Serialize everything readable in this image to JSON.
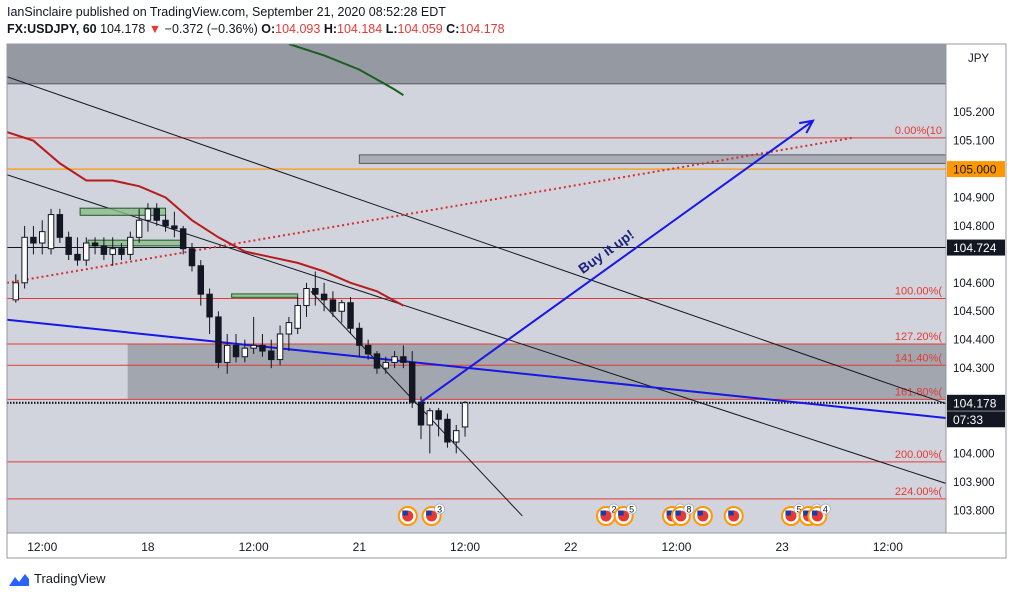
{
  "header": {
    "publish_line": "IanSinclaire published on TradingView.com, September 21, 2020 08:52:28 EDT",
    "symbol": "FX:USDJPY, 60",
    "last": "104.178",
    "arrow": "▼",
    "change": "−0.372 (−0.36%)",
    "o_label": "O:",
    "o_value": "104.093",
    "h_label": "H:",
    "h_value": "104.184",
    "l_label": "L:",
    "l_value": "104.059",
    "c_label": "C:",
    "c_value": "104.178"
  },
  "footer": {
    "brand": "TradingView"
  },
  "colors": {
    "background": "#d1d4dc",
    "bull": "#ffffff",
    "bear": "#131722",
    "red_ma": "#b71c1c",
    "green_ma": "#1b5e20",
    "blue": "#1717e6",
    "fib": "#e53935",
    "orange": "#ff9800"
  },
  "chart_data": {
    "type": "candlestick",
    "currency": "JPY",
    "ylim": [
      103.72,
      105.44
    ],
    "y_ticks": [
      "105.200",
      "105.100",
      "104.900",
      "104.800",
      "104.600",
      "104.500",
      "104.400",
      "104.300",
      "104.000",
      "103.900",
      "103.800"
    ],
    "x_ticks": [
      {
        "label": "12:00",
        "bar": 3
      },
      {
        "label": "18",
        "bar": 15
      },
      {
        "label": "12:00",
        "bar": 27
      },
      {
        "label": "21",
        "bar": 39
      },
      {
        "label": "12:00",
        "bar": 51
      },
      {
        "label": "22",
        "bar": 63
      },
      {
        "label": "12:00",
        "bar": 75
      },
      {
        "label": "23",
        "bar": 87
      },
      {
        "label": "12:00",
        "bar": 99
      }
    ],
    "x_range": [
      -1,
      105.6
    ],
    "price_badges": [
      {
        "label": "105.000",
        "value": 105.0,
        "style": "orange"
      },
      {
        "label": "104.724",
        "value": 104.724,
        "style": "dark"
      },
      {
        "label": "104.178",
        "value": 104.178,
        "style": "dark"
      },
      {
        "label": "07:33",
        "value": 104.12,
        "style": "dark"
      }
    ],
    "candles": [
      {
        "o": 104.54,
        "h": 104.63,
        "l": 104.53,
        "c": 104.6
      },
      {
        "o": 104.6,
        "h": 104.8,
        "l": 104.58,
        "c": 104.76
      },
      {
        "o": 104.76,
        "h": 104.8,
        "l": 104.7,
        "c": 104.74
      },
      {
        "o": 104.74,
        "h": 104.82,
        "l": 104.7,
        "c": 104.78
      },
      {
        "o": 104.72,
        "h": 104.86,
        "l": 104.7,
        "c": 104.84
      },
      {
        "o": 104.84,
        "h": 104.86,
        "l": 104.74,
        "c": 104.76
      },
      {
        "o": 104.76,
        "h": 104.78,
        "l": 104.68,
        "c": 104.7
      },
      {
        "o": 104.7,
        "h": 104.76,
        "l": 104.66,
        "c": 104.68
      },
      {
        "o": 104.68,
        "h": 104.76,
        "l": 104.66,
        "c": 104.74
      },
      {
        "o": 104.74,
        "h": 104.76,
        "l": 104.7,
        "c": 104.73
      },
      {
        "o": 104.73,
        "h": 104.76,
        "l": 104.68,
        "c": 104.7
      },
      {
        "o": 104.7,
        "h": 104.76,
        "l": 104.66,
        "c": 104.72
      },
      {
        "o": 104.72,
        "h": 104.74,
        "l": 104.68,
        "c": 104.7
      },
      {
        "o": 104.7,
        "h": 104.78,
        "l": 104.68,
        "c": 104.76
      },
      {
        "o": 104.76,
        "h": 104.86,
        "l": 104.74,
        "c": 104.82
      },
      {
        "o": 104.82,
        "h": 104.88,
        "l": 104.78,
        "c": 104.86
      },
      {
        "o": 104.86,
        "h": 104.88,
        "l": 104.8,
        "c": 104.82
      },
      {
        "o": 104.82,
        "h": 104.84,
        "l": 104.78,
        "c": 104.8
      },
      {
        "o": 104.8,
        "h": 104.85,
        "l": 104.76,
        "c": 104.79
      },
      {
        "o": 104.79,
        "h": 104.8,
        "l": 104.7,
        "c": 104.72
      },
      {
        "o": 104.72,
        "h": 104.74,
        "l": 104.64,
        "c": 104.66
      },
      {
        "o": 104.66,
        "h": 104.68,
        "l": 104.52,
        "c": 104.56
      },
      {
        "o": 104.56,
        "h": 104.58,
        "l": 104.42,
        "c": 104.48
      },
      {
        "o": 104.48,
        "h": 104.5,
        "l": 104.3,
        "c": 104.32
      },
      {
        "o": 104.32,
        "h": 104.42,
        "l": 104.28,
        "c": 104.38
      },
      {
        "o": 104.38,
        "h": 104.42,
        "l": 104.32,
        "c": 104.34
      },
      {
        "o": 104.34,
        "h": 104.4,
        "l": 104.32,
        "c": 104.37
      },
      {
        "o": 104.37,
        "h": 104.48,
        "l": 104.35,
        "c": 104.38
      },
      {
        "o": 104.38,
        "h": 104.42,
        "l": 104.34,
        "c": 104.36
      },
      {
        "o": 104.36,
        "h": 104.4,
        "l": 104.3,
        "c": 104.33
      },
      {
        "o": 104.33,
        "h": 104.45,
        "l": 104.31,
        "c": 104.42
      },
      {
        "o": 104.42,
        "h": 104.48,
        "l": 104.36,
        "c": 104.46
      },
      {
        "o": 104.44,
        "h": 104.55,
        "l": 104.42,
        "c": 104.52
      },
      {
        "o": 104.52,
        "h": 104.6,
        "l": 104.48,
        "c": 104.58
      },
      {
        "o": 104.58,
        "h": 104.64,
        "l": 104.52,
        "c": 104.56
      },
      {
        "o": 104.56,
        "h": 104.6,
        "l": 104.5,
        "c": 104.54
      },
      {
        "o": 104.54,
        "h": 104.57,
        "l": 104.48,
        "c": 104.5
      },
      {
        "o": 104.5,
        "h": 104.54,
        "l": 104.46,
        "c": 104.53
      },
      {
        "o": 104.53,
        "h": 104.55,
        "l": 104.42,
        "c": 104.44
      },
      {
        "o": 104.44,
        "h": 104.46,
        "l": 104.34,
        "c": 104.38
      },
      {
        "o": 104.38,
        "h": 104.4,
        "l": 104.33,
        "c": 104.35
      },
      {
        "o": 104.35,
        "h": 104.36,
        "l": 104.28,
        "c": 104.3
      },
      {
        "o": 104.3,
        "h": 104.34,
        "l": 104.28,
        "c": 104.32
      },
      {
        "o": 104.32,
        "h": 104.36,
        "l": 104.3,
        "c": 104.34
      },
      {
        "o": 104.34,
        "h": 104.38,
        "l": 104.3,
        "c": 104.32
      },
      {
        "o": 104.32,
        "h": 104.36,
        "l": 104.16,
        "c": 104.18
      },
      {
        "o": 104.18,
        "h": 104.2,
        "l": 104.05,
        "c": 104.1
      },
      {
        "o": 104.1,
        "h": 104.16,
        "l": 104.0,
        "c": 104.15
      },
      {
        "o": 104.15,
        "h": 104.16,
        "l": 104.06,
        "c": 104.12
      },
      {
        "o": 104.12,
        "h": 104.14,
        "l": 104.02,
        "c": 104.04
      },
      {
        "o": 104.04,
        "h": 104.1,
        "l": 104.0,
        "c": 104.08
      },
      {
        "o": 104.093,
        "h": 104.184,
        "l": 104.059,
        "c": 104.178
      }
    ],
    "horizontal_lines": [
      {
        "value": 104.724,
        "color": "#131722",
        "width": 1
      },
      {
        "value": 105.0,
        "color": "#ff9800",
        "width": 1.2
      },
      {
        "value": 104.178,
        "color": "#131722",
        "width": 1.2,
        "dotted": true
      }
    ],
    "fib_levels": [
      {
        "value": 105.11,
        "label": "0.00%(10"
      },
      {
        "value": 104.545,
        "label": "100.00%("
      },
      {
        "value": 104.385,
        "label": "127.20%("
      },
      {
        "value": 104.31,
        "label": "141.40%("
      },
      {
        "value": 104.19,
        "label": "161.80%("
      },
      {
        "value": 103.97,
        "label": "200.00%("
      },
      {
        "value": 103.84,
        "label": "224.00%("
      }
    ],
    "zones": [
      {
        "x1": -1,
        "x2": 107,
        "y1": 105.44,
        "y2": 105.3,
        "fill": "#8b8e98",
        "stroke": "#555a66"
      },
      {
        "x1": 39,
        "x2": 107,
        "y1": 105.05,
        "y2": 105.02,
        "fill": "#a3a6ae",
        "stroke": "#555a66"
      },
      {
        "x1": 12.7,
        "x2": 107,
        "y1": 104.385,
        "y2": 104.19,
        "fill": "#9a9da6",
        "stroke": "none"
      }
    ],
    "ranges_drawn": [
      {
        "x1": 7.3,
        "x2": 17,
        "y": 104.85,
        "h": 0.025
      },
      {
        "x1": 8.2,
        "x2": 19,
        "y": 104.74,
        "h": 0.02
      },
      {
        "x1": 24.5,
        "x2": 32,
        "y": 104.555,
        "h": 0.012
      }
    ],
    "trend_lines": [
      {
        "x1": -1,
        "y1": 105.325,
        "x2": 107,
        "y2": 104.16,
        "color": "#131722",
        "width": 1
      },
      {
        "x1": -1,
        "y1": 104.98,
        "x2": 107,
        "y2": 103.88,
        "color": "#131722",
        "width": 1
      },
      {
        "x1": 33.5,
        "y1": 104.57,
        "x2": 57.5,
        "y2": 103.78,
        "color": "#131722",
        "width": 1
      },
      {
        "x1": -1,
        "y1": 104.47,
        "x2": 107,
        "y2": 104.12,
        "color": "#1717e6",
        "width": 2
      }
    ],
    "red_dotted_line": {
      "x1": -1,
      "y1": 104.6,
      "x2": 95,
      "y2": 105.11
    },
    "ma_red": [
      [
        -1,
        105.13
      ],
      [
        2,
        105.1
      ],
      [
        5,
        105.02
      ],
      [
        8,
        104.96
      ],
      [
        11,
        104.96
      ],
      [
        14,
        104.94
      ],
      [
        17,
        104.9
      ],
      [
        20,
        104.82
      ],
      [
        23,
        104.76
      ],
      [
        26,
        104.71
      ],
      [
        29,
        104.69
      ],
      [
        32,
        104.67
      ],
      [
        35,
        104.64
      ],
      [
        38,
        104.6
      ],
      [
        41,
        104.57
      ],
      [
        44,
        104.52
      ]
    ],
    "ma_green": [
      [
        31,
        105.44
      ],
      [
        35,
        105.4
      ],
      [
        39,
        105.35
      ],
      [
        43,
        105.28
      ],
      [
        44,
        105.26
      ]
    ],
    "arrow": {
      "x1": 46,
      "y1": 104.18,
      "x2": 90.5,
      "y2": 105.17,
      "label": "Buy it up!"
    },
    "events": [
      {
        "bar": 44.5,
        "count": ""
      },
      {
        "bar": 47.2,
        "count": "3"
      },
      {
        "bar": 67,
        "count": "2"
      },
      {
        "bar": 69,
        "count": "5"
      },
      {
        "bar": 74.5,
        "count": "3"
      },
      {
        "bar": 75.5,
        "count": "8"
      },
      {
        "bar": 78,
        "count": ""
      },
      {
        "bar": 81.5,
        "count": ""
      },
      {
        "bar": 88,
        "count": "5"
      },
      {
        "bar": 90,
        "count": "6"
      },
      {
        "bar": 91,
        "count": "4"
      }
    ]
  }
}
